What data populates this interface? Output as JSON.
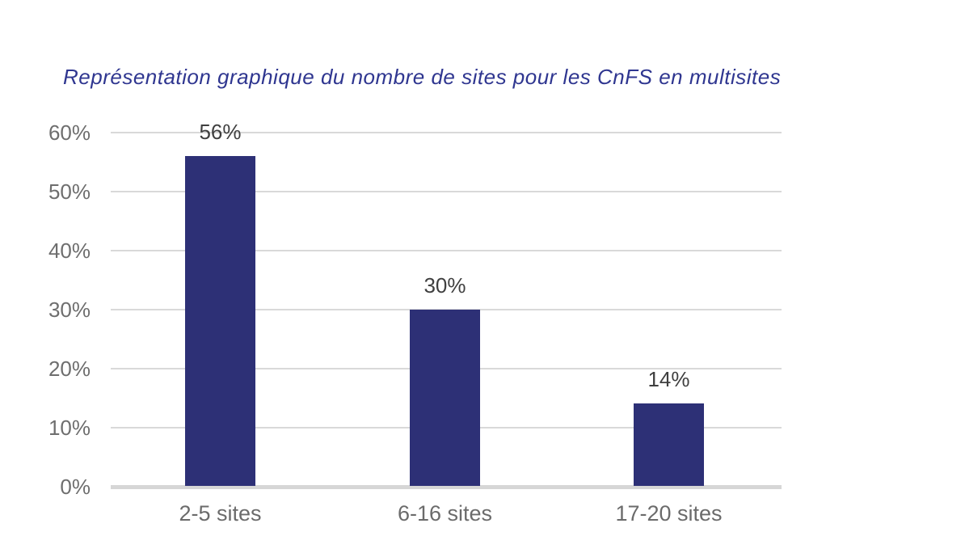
{
  "colors": {
    "background": "#FFFFFF",
    "bar": "#2D3076",
    "title": "#2F3690",
    "gridline": "#D9D9D9",
    "axis_line": "#D6D6D6",
    "tick_label": "#6E6E6E",
    "category_label": "#6B6B6B",
    "value_label": "#3F3F3F"
  },
  "chart_data": {
    "type": "bar",
    "title": "Représentation graphique du nombre de sites pour les CnFS en multisites",
    "categories": [
      "2-5 sites",
      "6-16 sites",
      "17-20 sites"
    ],
    "values": [
      56,
      30,
      14
    ],
    "value_labels": [
      "56%",
      "30%",
      "14%"
    ],
    "xlabel": "",
    "ylabel": "",
    "ylim": [
      0,
      60
    ],
    "ytick_step": 10,
    "ytick_labels": [
      "0%",
      "10%",
      "20%",
      "30%",
      "40%",
      "50%",
      "60%"
    ],
    "grid": true,
    "legend": false,
    "orientation": "vertical"
  }
}
